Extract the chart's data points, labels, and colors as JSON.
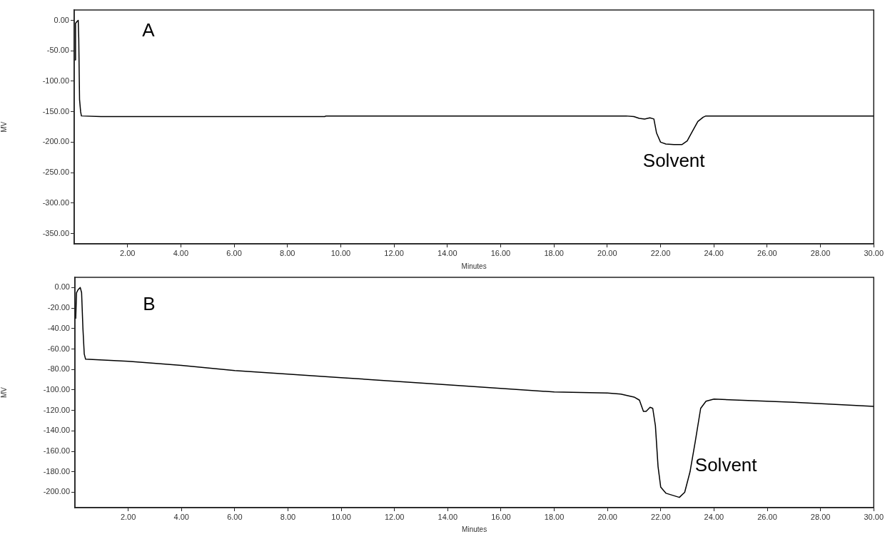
{
  "chart_data": [
    {
      "type": "line",
      "xlabel": "Minutes",
      "ylabel": "MV",
      "xlim": [
        0,
        30
      ],
      "ylim": [
        -367,
        17
      ],
      "grid": false,
      "legend": false,
      "marker": "none",
      "line_style": "solid",
      "xticks": [
        {
          "value": 2,
          "label": "2.00"
        },
        {
          "value": 4,
          "label": "4.00"
        },
        {
          "value": 6,
          "label": "6.00"
        },
        {
          "value": 8,
          "label": "8.00"
        },
        {
          "value": 10,
          "label": "10.00"
        },
        {
          "value": 12,
          "label": "12.00"
        },
        {
          "value": 14,
          "label": "14.00"
        },
        {
          "value": 16,
          "label": "16.00"
        },
        {
          "value": 18,
          "label": "18.00"
        },
        {
          "value": 20,
          "label": "20.00"
        },
        {
          "value": 22,
          "label": "22.00"
        },
        {
          "value": 24,
          "label": "24.00"
        },
        {
          "value": 26,
          "label": "26.00"
        },
        {
          "value": 28,
          "label": "28.00"
        },
        {
          "value": 30,
          "label": "30.00"
        }
      ],
      "yticks": [
        {
          "value": 0,
          "label": "0.00"
        },
        {
          "value": -50,
          "label": "-50.00"
        },
        {
          "value": -100,
          "label": "-100.00"
        },
        {
          "value": -150,
          "label": "-150.00"
        },
        {
          "value": -200,
          "label": "-200.00"
        },
        {
          "value": -250,
          "label": "-250.00"
        },
        {
          "value": -300,
          "label": "-300.00"
        },
        {
          "value": -350,
          "label": "-350.00"
        }
      ],
      "annotations": [
        "A",
        "Solvent"
      ],
      "series": [
        {
          "color": "#000000",
          "x": [
            0.03,
            0.05,
            0.1,
            0.15,
            0.17,
            0.2,
            0.24,
            0.27,
            1,
            5,
            9.4,
            9.45,
            15,
            20.7,
            21.0,
            21.2,
            21.4,
            21.6,
            21.75,
            21.85,
            22.0,
            22.2,
            22.5,
            22.8,
            23.0,
            23.2,
            23.4,
            23.6,
            23.7,
            26,
            30
          ],
          "values": [
            -65,
            -5,
            -2,
            0,
            -30,
            -130,
            -150,
            -157,
            -158,
            -158,
            -158,
            -157,
            -157,
            -157,
            -158,
            -161,
            -162,
            -160,
            -162,
            -185,
            -200,
            -203,
            -204,
            -204,
            -198,
            -182,
            -166,
            -159,
            -157,
            -157,
            -157
          ]
        }
      ]
    },
    {
      "type": "line",
      "xlabel": "Minutes",
      "ylabel": "MV",
      "xlim": [
        0,
        30
      ],
      "ylim": [
        -215,
        10
      ],
      "grid": false,
      "legend": false,
      "marker": "none",
      "line_style": "solid",
      "xticks": [
        {
          "value": 2,
          "label": "2.00"
        },
        {
          "value": 4,
          "label": "4.00"
        },
        {
          "value": 6,
          "label": "6.00"
        },
        {
          "value": 8,
          "label": "8.00"
        },
        {
          "value": 10,
          "label": "10.00"
        },
        {
          "value": 12,
          "label": "12.00"
        },
        {
          "value": 14,
          "label": "14.00"
        },
        {
          "value": 16,
          "label": "16.00"
        },
        {
          "value": 18,
          "label": "18.00"
        },
        {
          "value": 20,
          "label": "20.00"
        },
        {
          "value": 22,
          "label": "22.00"
        },
        {
          "value": 24,
          "label": "24.00"
        },
        {
          "value": 26,
          "label": "26.00"
        },
        {
          "value": 28,
          "label": "28.00"
        },
        {
          "value": 30,
          "label": "30.00"
        }
      ],
      "yticks": [
        {
          "value": 0,
          "label": "0.00"
        },
        {
          "value": -20,
          "label": "-20.00"
        },
        {
          "value": -40,
          "label": "-40.00"
        },
        {
          "value": -60,
          "label": "-60.00"
        },
        {
          "value": -80,
          "label": "-80.00"
        },
        {
          "value": -100,
          "label": "-100.00"
        },
        {
          "value": -120,
          "label": "-120.00"
        },
        {
          "value": -140,
          "label": "-140.00"
        },
        {
          "value": -160,
          "label": "-160.00"
        },
        {
          "value": -180,
          "label": "-180.00"
        },
        {
          "value": -200,
          "label": "-200.00"
        }
      ],
      "annotations": [
        "B",
        "Solvent"
      ],
      "series": [
        {
          "color": "#000000",
          "x": [
            0.03,
            0.06,
            0.12,
            0.2,
            0.25,
            0.3,
            0.35,
            0.4,
            2,
            4,
            6,
            10,
            14,
            18,
            20,
            20.5,
            21.0,
            21.2,
            21.35,
            21.45,
            21.6,
            21.7,
            21.8,
            21.9,
            22.0,
            22.2,
            22.7,
            22.9,
            23.1,
            23.3,
            23.5,
            23.7,
            24.0,
            27,
            30
          ],
          "values": [
            -30,
            -5,
            -2,
            0,
            -5,
            -40,
            -65,
            -70,
            -72,
            -76,
            -81,
            -88,
            -95,
            -102,
            -103,
            -104,
            -107,
            -110,
            -121,
            -121,
            -117,
            -118,
            -135,
            -175,
            -195,
            -201,
            -205,
            -200,
            -180,
            -150,
            -118,
            -111,
            -109,
            -112,
            -116
          ]
        }
      ]
    }
  ]
}
